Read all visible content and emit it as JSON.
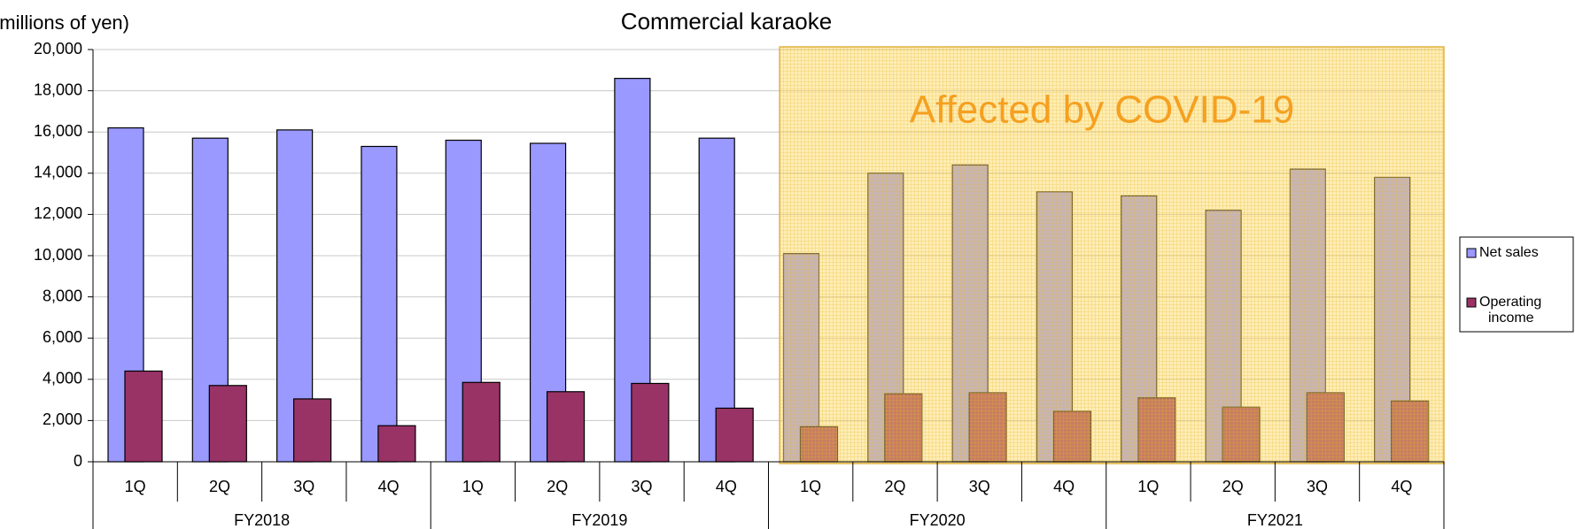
{
  "chart_data": {
    "type": "bar",
    "title": "Commercial karaoke",
    "y_axis_label": "(millions of yen)",
    "annotation": "Affected by COVID-19",
    "categories": [
      "1Q",
      "2Q",
      "3Q",
      "4Q",
      "1Q",
      "2Q",
      "3Q",
      "4Q",
      "1Q",
      "2Q",
      "3Q",
      "4Q",
      "1Q",
      "2Q",
      "3Q",
      "4Q"
    ],
    "groups": [
      "FY2018",
      "FY2019",
      "FY2020",
      "FY2021"
    ],
    "series": [
      {
        "name": "Net sales",
        "color": "#9999ff",
        "values": [
          16200,
          15700,
          16100,
          15300,
          15600,
          15450,
          18600,
          15700,
          10100,
          14000,
          14400,
          13100,
          12900,
          12200,
          14200,
          13800
        ]
      },
      {
        "name": "Operating income",
        "color": "#993366",
        "values": [
          4400,
          3700,
          3050,
          1750,
          3850,
          3400,
          3800,
          2600,
          1700,
          3300,
          3350,
          2450,
          3100,
          2650,
          3350,
          2950
        ]
      }
    ],
    "ylim": [
      0,
      20000
    ],
    "yticks": [
      0,
      {
        "value": 2000,
        "label": "2,000"
      },
      {
        "value": 4000,
        "label": "4,000"
      },
      {
        "value": 6000,
        "label": "6,000"
      },
      {
        "value": 8000,
        "label": "8,000"
      },
      {
        "value": 10000,
        "label": "10,000"
      },
      {
        "value": 12000,
        "label": "12,000"
      },
      {
        "value": 14000,
        "label": "14,000"
      },
      {
        "value": 16000,
        "label": "16,000"
      },
      {
        "value": 18000,
        "label": "18,000"
      },
      {
        "value": 20000,
        "label": "20,000"
      }
    ],
    "grid": true,
    "legend": "right"
  }
}
